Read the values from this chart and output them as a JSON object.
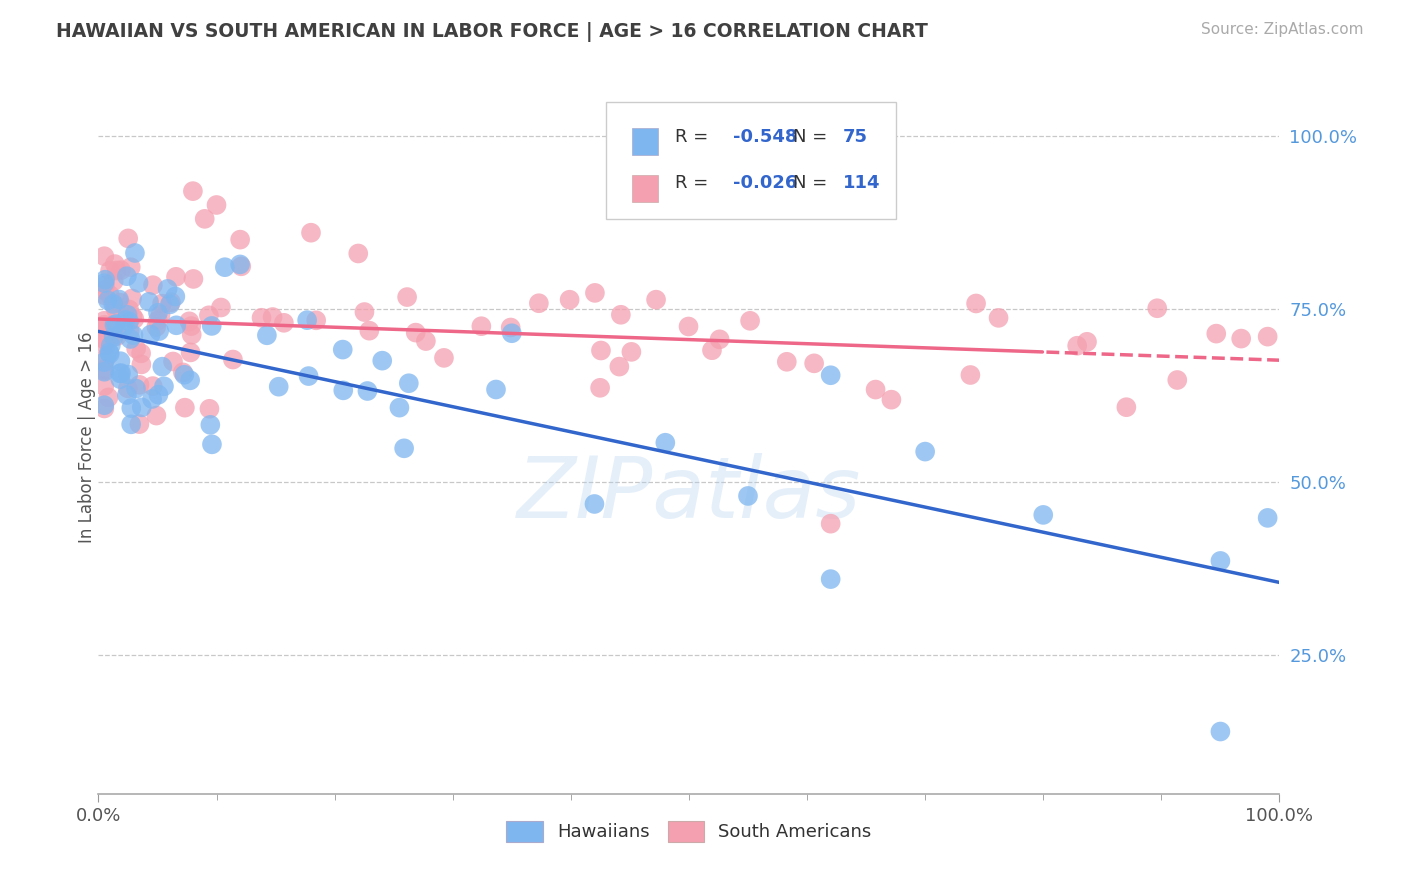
{
  "title": "HAWAIIAN VS SOUTH AMERICAN IN LABOR FORCE | AGE > 16 CORRELATION CHART",
  "source_text": "Source: ZipAtlas.com",
  "ylabel": "In Labor Force | Age > 16",
  "xlim": [
    0,
    1.0
  ],
  "ylim": [
    0.05,
    1.08
  ],
  "ytick_values": [
    0.25,
    0.5,
    0.75,
    1.0
  ],
  "legend_label1": "Hawaiians",
  "legend_label2": "South Americans",
  "color_blue": "#7EB6F0",
  "color_pink": "#F4A0B0",
  "color_blue_line": "#3366CC",
  "color_pink_line": "#EE6688",
  "color_grid": "#C8C8C8",
  "color_title": "#404040",
  "watermark_text": "ZIPatlas",
  "r1": "-0.548",
  "n1": "75",
  "r2": "-0.026",
  "n2": "114"
}
